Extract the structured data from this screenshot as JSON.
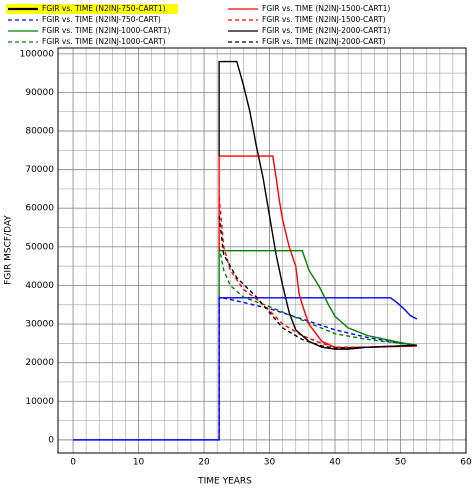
{
  "chart_data": {
    "type": "line",
    "x_label": "TIME  YEARS",
    "y_label": "FGIR  MSCF/DAY",
    "xlim": [
      -2.3,
      60
    ],
    "ylim": [
      -3400,
      101500
    ],
    "xticks": [
      0,
      10,
      20,
      30,
      40,
      50,
      60
    ],
    "yticks": [
      0,
      10000,
      20000,
      30000,
      40000,
      50000,
      60000,
      70000,
      80000,
      90000,
      100000
    ],
    "x_minor_ticks": [
      2,
      4,
      6,
      8,
      12,
      14,
      16,
      18,
      22,
      24,
      26,
      28,
      32,
      34,
      36,
      38,
      42,
      44,
      46,
      48,
      52,
      54,
      56,
      58
    ],
    "y_minor_ticks": [
      5000,
      15000,
      25000,
      35000,
      45000,
      55000,
      65000,
      75000,
      85000,
      95000
    ],
    "grid": true,
    "series": [
      {
        "name": "FGIR vs. TIME (N2INJ-750-CART1)",
        "color": "#0000ff",
        "dash": false,
        "selected": true,
        "x": [
          0,
          22.3,
          22.3,
          48.5,
          49.5,
          50.5,
          51.5,
          52.5
        ],
        "values": [
          0,
          0,
          36800,
          36800,
          35500,
          34000,
          32200,
          31300
        ]
      },
      {
        "name": "FGIR vs. TIME (N2INJ-750-CART)",
        "color": "#0000ff",
        "dash": true,
        "selected": false,
        "x": [
          22.3,
          22.3,
          25,
          30,
          35,
          40,
          45,
          50,
          52.5
        ],
        "values": [
          0,
          37000,
          36000,
          34000,
          31300,
          28500,
          26500,
          25000,
          24500
        ]
      },
      {
        "name": "FGIR vs. TIME (N2INJ-1000-CART1)",
        "color": "#008000",
        "dash": false,
        "selected": false,
        "x": [
          22.3,
          22.3,
          35,
          36,
          37.5,
          39,
          40,
          42,
          45,
          50,
          52.5
        ],
        "values": [
          37000,
          49000,
          49000,
          44000,
          40000,
          35000,
          32000,
          29000,
          27000,
          25200,
          24500
        ]
      },
      {
        "name": "FGIR vs. TIME (N2INJ-1000-CART)",
        "color": "#008000",
        "dash": true,
        "selected": false,
        "x": [
          22.3,
          23,
          24,
          26,
          30,
          35,
          40,
          45,
          52.5
        ],
        "values": [
          50000,
          44000,
          40000,
          37000,
          34500,
          31000,
          27500,
          26000,
          24500
        ]
      },
      {
        "name": "FGIR vs. TIME (N2INJ-1500-CART1)",
        "color": "#ff0000",
        "dash": false,
        "selected": false,
        "x": [
          22.3,
          22.3,
          30.5,
          31,
          31.5,
          32,
          33,
          34,
          34.5,
          35,
          36,
          38,
          40,
          42,
          45,
          50,
          52.5
        ],
        "values": [
          49000,
          73500,
          73500,
          68000,
          62000,
          57000,
          50000,
          45000,
          38000,
          35000,
          30000,
          25500,
          24000,
          23800,
          24000,
          24200,
          24300
        ]
      },
      {
        "name": "FGIR vs. TIME (N2INJ-1500-CART)",
        "color": "#ff0000",
        "dash": true,
        "selected": false,
        "x": [
          22.3,
          23,
          24,
          26,
          28,
          30,
          32,
          35,
          38,
          40,
          45,
          52.5
        ],
        "values": [
          63000,
          50000,
          44000,
          39000,
          36500,
          33500,
          30000,
          27000,
          25000,
          24000,
          24000,
          24500
        ]
      },
      {
        "name": "FGIR vs. TIME (N2INJ-2000-CART1)",
        "color": "#000000",
        "dash": false,
        "selected": false,
        "x": [
          22.3,
          22.3,
          25,
          26,
          27,
          28,
          29,
          30,
          31,
          32,
          33,
          34,
          36,
          38,
          40,
          42,
          45,
          52.5
        ],
        "values": [
          73500,
          98000,
          98000,
          92000,
          85000,
          76000,
          68000,
          58000,
          48000,
          40000,
          33000,
          28500,
          25500,
          24000,
          23500,
          23500,
          24000,
          24500
        ]
      },
      {
        "name": "FGIR vs. TIME (N2INJ-2000-CART)",
        "color": "#000000",
        "dash": true,
        "selected": false,
        "x": [
          22.3,
          23,
          25,
          28,
          30,
          32,
          35,
          38,
          40,
          45,
          52.5
        ],
        "values": [
          58000,
          48000,
          42000,
          37000,
          33000,
          29000,
          26000,
          24300,
          23800,
          24000,
          24500
        ]
      }
    ]
  }
}
